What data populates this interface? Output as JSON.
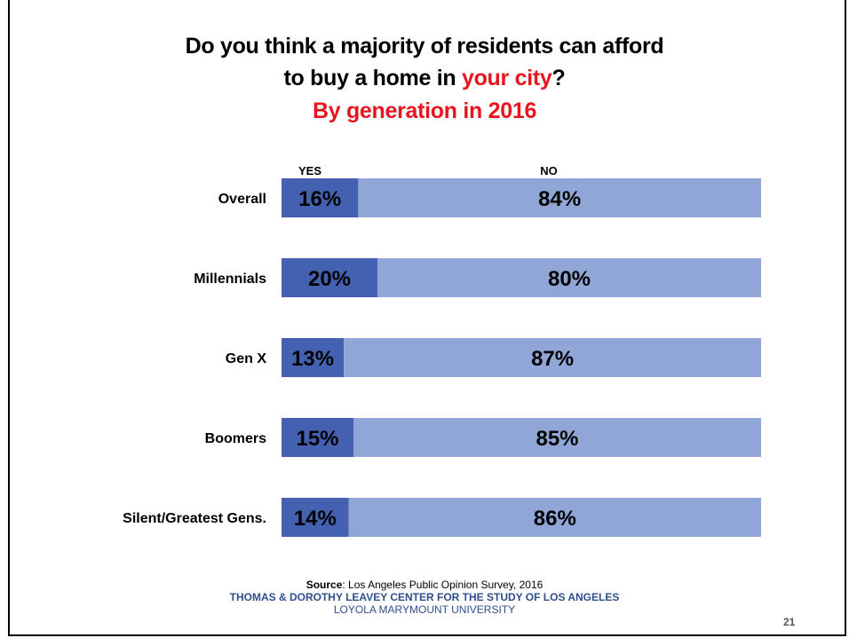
{
  "title": {
    "line1": "Do you think a majority of residents can afford",
    "line2_pre": "to buy a home in ",
    "line2_highlight": "your city",
    "line2_post": "?",
    "line3": "By generation in 2016"
  },
  "colors": {
    "yes": "#4361b0",
    "no": "#8fa6d6",
    "title_highlight": "#e8141e",
    "footer_text": "#2e4f8f"
  },
  "chart_data": {
    "type": "bar",
    "orientation": "horizontal",
    "stacked": true,
    "categories": [
      "Overall",
      "Millennials",
      "Gen X",
      "Boomers",
      "Silent/Greatest Gens."
    ],
    "series": [
      {
        "name": "YES",
        "values": [
          16,
          20,
          13,
          15,
          14
        ]
      },
      {
        "name": "NO",
        "values": [
          84,
          80,
          87,
          85,
          86
        ]
      }
    ],
    "data_labels": {
      "YES": [
        "16%",
        "20%",
        "13%",
        "15%",
        "14%"
      ],
      "NO": [
        "84%",
        "80%",
        "87%",
        "85%",
        "86%"
      ]
    },
    "xlim": [
      0,
      100
    ],
    "grid": false,
    "legend_position": "top"
  },
  "footer": {
    "source_label": "Source",
    "source_text": ": Los Angeles Public Opinion Survey, 2016",
    "org": "THOMAS & DOROTHY LEAVEY CENTER FOR THE STUDY OF LOS ANGELES",
    "university": "LOYOLA MARYMOUNT UNIVERSITY",
    "page_number": "21"
  }
}
